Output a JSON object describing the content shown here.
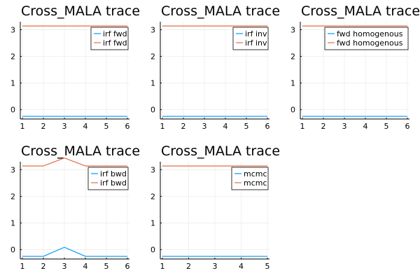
{
  "colors": {
    "series1": "#009AFA",
    "series2": "#E36F47",
    "axis": "#000000",
    "grid": "#E6E6E6"
  },
  "chart_data": [
    {
      "type": "line",
      "title": "Cross_MALA trace",
      "x": [
        1,
        2,
        3,
        4,
        5,
        6
      ],
      "xticks": [
        1,
        2,
        3,
        4,
        5,
        6
      ],
      "xlim": [
        0.9,
        6.1
      ],
      "yticks": [
        0,
        1,
        2,
        3
      ],
      "ylim": [
        -0.35,
        3.3
      ],
      "grid": true,
      "legend_position": "top-right",
      "series": [
        {
          "name": "irf fwd",
          "color": "#009AFA",
          "values": [
            -0.25,
            -0.25,
            -0.25,
            -0.25,
            -0.25,
            -0.25
          ]
        },
        {
          "name": "irf fwd",
          "color": "#E36F47",
          "values": [
            3.14,
            3.14,
            3.14,
            3.14,
            3.14,
            3.14
          ]
        }
      ]
    },
    {
      "type": "line",
      "title": "Cross_MALA trace",
      "x": [
        1,
        2,
        3,
        4,
        5,
        6
      ],
      "xticks": [
        1,
        2,
        3,
        4,
        5,
        6
      ],
      "xlim": [
        0.9,
        6.1
      ],
      "yticks": [
        0,
        1,
        2,
        3
      ],
      "ylim": [
        -0.35,
        3.3
      ],
      "grid": true,
      "legend_position": "top-right",
      "series": [
        {
          "name": "irf inv",
          "color": "#009AFA",
          "values": [
            -0.25,
            -0.25,
            -0.25,
            -0.25,
            -0.25,
            -0.25
          ]
        },
        {
          "name": "irf inv",
          "color": "#E36F47",
          "values": [
            3.14,
            3.14,
            3.14,
            3.14,
            3.14,
            3.14
          ]
        }
      ]
    },
    {
      "type": "line",
      "title": "Cross_MALA trace",
      "x": [
        1,
        2,
        3,
        4,
        5,
        6
      ],
      "xticks": [
        1,
        2,
        3,
        4,
        5,
        6
      ],
      "xlim": [
        0.9,
        6.1
      ],
      "yticks": [
        0,
        1,
        2,
        3
      ],
      "ylim": [
        -0.35,
        3.3
      ],
      "grid": true,
      "legend_position": "top-right",
      "series": [
        {
          "name": "fwd homogenous",
          "color": "#009AFA",
          "values": [
            -0.25,
            -0.25,
            -0.25,
            -0.25,
            -0.25,
            -0.25
          ]
        },
        {
          "name": "fwd homogenous",
          "color": "#E36F47",
          "values": [
            3.14,
            3.14,
            3.14,
            3.14,
            3.14,
            3.14
          ]
        }
      ]
    },
    {
      "type": "line",
      "title": "Cross_MALA trace",
      "x": [
        1,
        2,
        3,
        4,
        5,
        6
      ],
      "xticks": [
        1,
        2,
        3,
        4,
        5,
        6
      ],
      "xlim": [
        0.9,
        6.1
      ],
      "yticks": [
        0,
        1,
        2,
        3
      ],
      "ylim": [
        -0.35,
        3.3
      ],
      "grid": true,
      "legend_position": "top-right",
      "series": [
        {
          "name": "irf bwd",
          "color": "#009AFA",
          "values": [
            -0.25,
            -0.25,
            0.09,
            -0.25,
            -0.25,
            -0.25
          ]
        },
        {
          "name": "irf bwd",
          "color": "#E36F47",
          "values": [
            3.14,
            3.14,
            3.44,
            3.14,
            3.14,
            3.14
          ]
        }
      ]
    },
    {
      "type": "line",
      "title": "Cross_MALA trace",
      "x": [
        1,
        2,
        3,
        4,
        5
      ],
      "xticks": [
        1,
        2,
        3,
        4,
        5
      ],
      "xlim": [
        0.92,
        5.08
      ],
      "yticks": [
        0,
        1,
        2,
        3
      ],
      "ylim": [
        -0.35,
        3.3
      ],
      "grid": true,
      "legend_position": "top-right",
      "series": [
        {
          "name": "mcmc",
          "color": "#009AFA",
          "values": [
            -0.25,
            -0.25,
            -0.25,
            -0.25,
            -0.25
          ]
        },
        {
          "name": "mcmc",
          "color": "#E36F47",
          "values": [
            3.14,
            3.14,
            3.14,
            3.14,
            3.14
          ]
        }
      ]
    }
  ]
}
